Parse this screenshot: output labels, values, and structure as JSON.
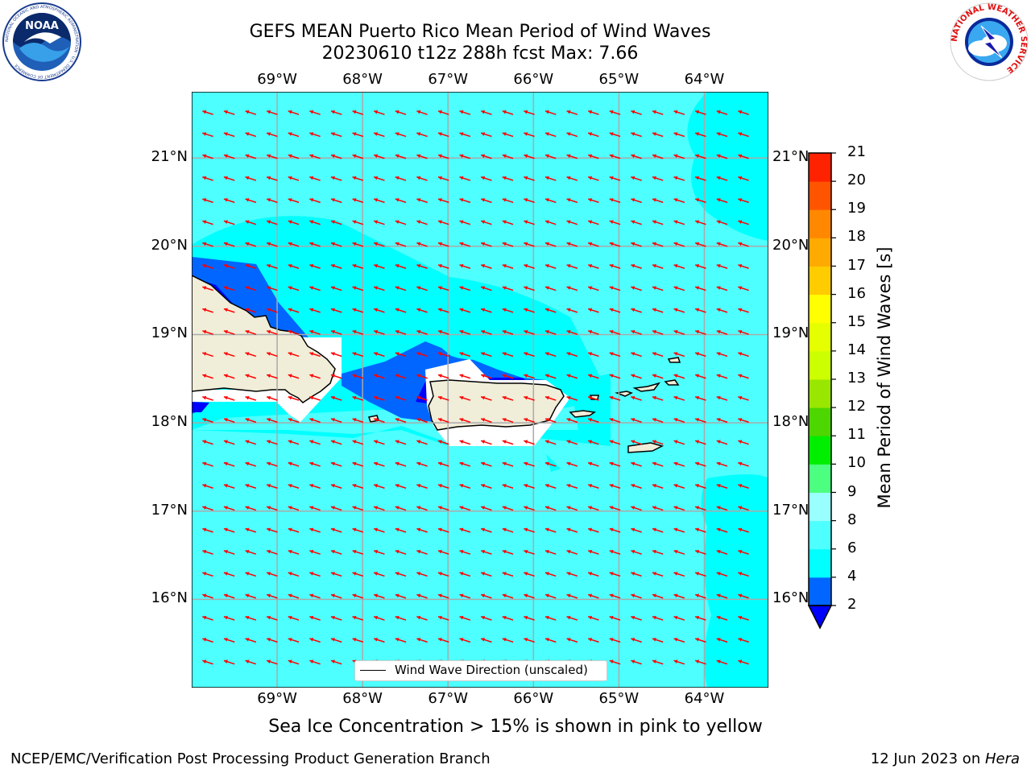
{
  "header": {
    "title_line1": "GEFS MEAN Puerto Rico Mean Period of Wind Waves",
    "title_line2": "20230610 t12z 288h fcst   Max: 7.66"
  },
  "logos": {
    "left": {
      "name": "noaa-logo",
      "text": "NOAA",
      "ring_text": "NATIONAL OCEANIC AND ATMOSPHERIC ADMINISTRATION · U.S. DEPARTMENT OF COMMERCE"
    },
    "right": {
      "name": "nws-logo",
      "ring_text": "NATIONAL WEATHER SERVICE"
    }
  },
  "map": {
    "lon_labels": [
      "69°W",
      "68°W",
      "67°W",
      "66°W",
      "65°W",
      "64°W"
    ],
    "lat_labels": [
      "21°N",
      "20°N",
      "19°N",
      "18°N",
      "17°N",
      "16°N"
    ],
    "lon_range": [
      -70.0,
      -63.25
    ],
    "lat_range": [
      15.0,
      21.75
    ],
    "background_period_s": 6.5,
    "ocean_color": "#4dffff",
    "land_color": "#f0edd8",
    "arrow_color": "#ff0000",
    "arrow_direction": "toward west-northwest"
  },
  "legend": {
    "label": "Wind Wave Direction (unscaled)"
  },
  "colorbar": {
    "label": "Mean Period of Wind Waves [s]",
    "ticks": [
      "2",
      "4",
      "6",
      "8",
      "9",
      "10",
      "11",
      "12",
      "13",
      "14",
      "15",
      "16",
      "17",
      "18",
      "19",
      "20",
      "21"
    ],
    "levels": [
      2,
      4,
      6,
      8,
      9,
      10,
      11,
      12,
      13,
      14,
      15,
      16,
      17,
      18,
      19,
      20,
      21
    ],
    "colors": [
      "#0066ff",
      "#00ffff",
      "#4dffff",
      "#99ffff",
      "#4dff80",
      "#00ee00",
      "#4dd600",
      "#99e600",
      "#ccff00",
      "#e6ff00",
      "#ffff00",
      "#ffcc00",
      "#ffaa00",
      "#ff8800",
      "#ff5500",
      "#ff2200"
    ],
    "under_color": "#0000ff",
    "over_color": "#ff0000"
  },
  "caption": "Sea Ice Concentration > 15% is shown in pink to yellow",
  "footer": {
    "left": "NCEP/EMC/Verification Post Processing Product Generation Branch",
    "right_date": "12 Jun 2023 on ",
    "right_host": "Hera"
  }
}
